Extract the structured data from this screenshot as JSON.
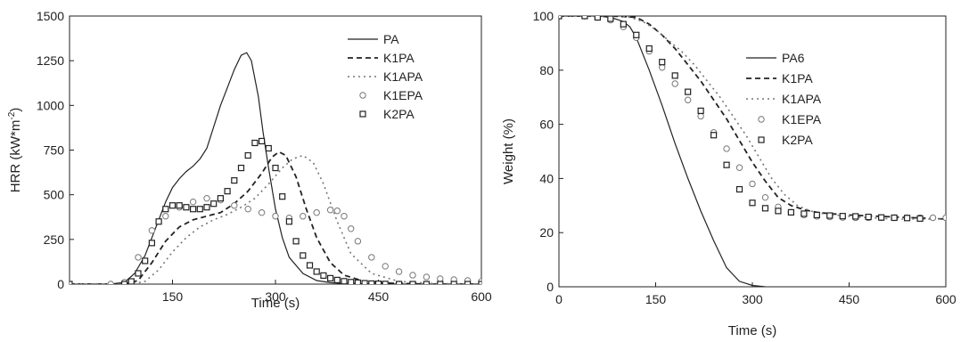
{
  "chart_data": [
    {
      "type": "line",
      "title": "",
      "xlabel": "Time (s)",
      "ylabel": "HRR (kW*m",
      "ylabel_sup": "-2",
      "ylabel_end": ")",
      "xlim": [
        0,
        600
      ],
      "ylim": [
        0,
        1500
      ],
      "xticks": [
        150,
        300,
        450,
        600
      ],
      "xtick_labels": [
        "150",
        "300",
        "450",
        "600"
      ],
      "yticks": [
        0,
        250,
        500,
        750,
        1000,
        1250,
        1500
      ],
      "ytick_labels": [
        "0",
        "250",
        "500",
        "750",
        "1000",
        "1250",
        "1500"
      ],
      "grid": false,
      "legend_position": "top-right",
      "series": [
        {
          "name": "PA",
          "style": "solid",
          "x": [
            0,
            60,
            80,
            95,
            110,
            120,
            130,
            140,
            150,
            160,
            170,
            180,
            190,
            200,
            210,
            220,
            230,
            240,
            250,
            258,
            265,
            275,
            282,
            290,
            300,
            310,
            320,
            340,
            360,
            380,
            400,
            430,
            460,
            500,
            550,
            600
          ],
          "y": [
            0,
            0,
            10,
            60,
            160,
            260,
            360,
            460,
            540,
            590,
            630,
            660,
            700,
            760,
            880,
            1000,
            1100,
            1200,
            1280,
            1295,
            1250,
            1050,
            850,
            650,
            420,
            260,
            150,
            60,
            20,
            8,
            4,
            2,
            1,
            0,
            0,
            0
          ]
        },
        {
          "name": "K1PA",
          "style": "dashed",
          "x": [
            0,
            80,
            100,
            120,
            140,
            160,
            180,
            200,
            220,
            240,
            260,
            280,
            295,
            305,
            315,
            330,
            345,
            360,
            380,
            400,
            430,
            470,
            520,
            600
          ],
          "y": [
            0,
            0,
            20,
            120,
            240,
            320,
            360,
            380,
            400,
            450,
            520,
            620,
            710,
            740,
            720,
            600,
            420,
            260,
            120,
            50,
            15,
            5,
            0,
            0
          ]
        },
        {
          "name": "K1APA",
          "style": "dotted",
          "x": [
            0,
            90,
            110,
            130,
            150,
            170,
            190,
            210,
            230,
            250,
            270,
            290,
            310,
            325,
            340,
            355,
            370,
            390,
            410,
            440,
            480,
            530,
            600
          ],
          "y": [
            0,
            0,
            15,
            80,
            180,
            260,
            320,
            360,
            390,
            430,
            480,
            560,
            650,
            700,
            720,
            680,
            560,
            350,
            170,
            60,
            15,
            3,
            0
          ]
        },
        {
          "name": "K1EPA",
          "style": "circle",
          "x": [
            0,
            60,
            80,
            100,
            120,
            140,
            160,
            180,
            200,
            220,
            240,
            260,
            280,
            300,
            320,
            340,
            360,
            380,
            390,
            400,
            410,
            420,
            440,
            460,
            480,
            500,
            520,
            540,
            560,
            580,
            600
          ],
          "y": [
            0,
            0,
            10,
            150,
            300,
            380,
            430,
            460,
            480,
            470,
            440,
            420,
            400,
            380,
            370,
            380,
            400,
            415,
            410,
            380,
            310,
            240,
            150,
            100,
            70,
            50,
            40,
            30,
            25,
            20,
            15
          ]
        },
        {
          "name": "K2PA",
          "style": "square",
          "x": [
            0,
            80,
            90,
            100,
            110,
            120,
            130,
            140,
            150,
            160,
            170,
            180,
            190,
            200,
            210,
            220,
            230,
            240,
            250,
            260,
            270,
            280,
            290,
            300,
            310,
            320,
            330,
            340,
            350,
            360,
            370,
            380,
            390,
            400,
            410,
            420,
            430,
            440,
            450,
            460,
            480,
            500,
            520,
            540,
            560,
            580,
            600
          ],
          "y": [
            0,
            0,
            15,
            60,
            130,
            230,
            350,
            420,
            440,
            440,
            430,
            420,
            420,
            430,
            450,
            480,
            520,
            580,
            650,
            720,
            790,
            800,
            760,
            650,
            490,
            350,
            240,
            160,
            105,
            70,
            48,
            33,
            23,
            16,
            11,
            8,
            5,
            3,
            2,
            1,
            0,
            0,
            0,
            0,
            0,
            0,
            0
          ]
        }
      ]
    },
    {
      "type": "line",
      "title": "",
      "xlabel": "Time (s)",
      "ylabel": "Weight (%)",
      "xlim": [
        0,
        600
      ],
      "ylim": [
        0,
        100
      ],
      "xticks": [
        0,
        150,
        300,
        450,
        600
      ],
      "xtick_labels": [
        "0",
        "150",
        "300",
        "450",
        "600"
      ],
      "yticks": [
        0,
        20,
        40,
        60,
        80,
        100
      ],
      "ytick_labels": [
        "0",
        "20",
        "40",
        "60",
        "80",
        "100"
      ],
      "grid": false,
      "legend_position": "right",
      "series": [
        {
          "name": "PA6",
          "style": "solid",
          "x": [
            0,
            60,
            80,
            100,
            110,
            120,
            140,
            160,
            180,
            200,
            220,
            240,
            260,
            280,
            300,
            320
          ],
          "y": [
            100,
            100,
            99.5,
            98,
            96,
            92,
            80,
            67,
            53,
            40,
            28,
            17,
            7,
            2,
            0.5,
            0
          ]
        },
        {
          "name": "K1PA",
          "style": "dashed",
          "x": [
            0,
            80,
            100,
            120,
            140,
            160,
            180,
            200,
            220,
            240,
            260,
            280,
            300,
            320,
            340,
            360,
            380,
            400,
            420,
            450,
            500,
            550,
            600
          ],
          "y": [
            100,
            100,
            99.8,
            99.5,
            97,
            93,
            88,
            82,
            76,
            69,
            62,
            54,
            46,
            39,
            33,
            30,
            28.5,
            27.5,
            27,
            26.5,
            26,
            25.5,
            25
          ]
        },
        {
          "name": "K1APA",
          "style": "dotted",
          "x": [
            0,
            90,
            110,
            130,
            150,
            170,
            190,
            210,
            230,
            250,
            270,
            290,
            310,
            330,
            350,
            370,
            390,
            410,
            430,
            450,
            480,
            520,
            600
          ],
          "y": [
            100,
            100,
            99.5,
            98,
            95,
            91,
            87,
            82,
            76,
            70,
            63,
            56,
            48,
            40,
            34,
            30,
            28,
            27,
            26.5,
            26,
            25.5,
            25,
            25
          ]
        },
        {
          "name": "K1EPA",
          "style": "circle",
          "x": [
            0,
            40,
            60,
            80,
            100,
            120,
            140,
            160,
            180,
            200,
            220,
            240,
            260,
            280,
            300,
            320,
            340,
            360,
            380,
            400,
            420,
            440,
            460,
            480,
            500,
            520,
            540,
            560,
            580,
            600
          ],
          "y": [
            100,
            100,
            99.5,
            98.5,
            96,
            92,
            87,
            81,
            75,
            69,
            63,
            57,
            51,
            44,
            38,
            33,
            29.5,
            27.5,
            26.5,
            26,
            25.8,
            25.6,
            25.5,
            25.5,
            25.5,
            25.5,
            25.5,
            25.5,
            25.5,
            25.5
          ]
        },
        {
          "name": "K2PA",
          "style": "square",
          "x": [
            0,
            40,
            60,
            80,
            100,
            120,
            140,
            160,
            180,
            200,
            220,
            240,
            260,
            280,
            300,
            320,
            340,
            360,
            380,
            400,
            420,
            440,
            460,
            480,
            500,
            520,
            540,
            560
          ],
          "y": [
            100,
            100,
            99.5,
            99,
            97,
            93,
            88,
            83,
            78,
            72,
            65,
            56,
            45,
            36,
            31,
            29,
            28,
            27.5,
            27,
            26.5,
            26.3,
            26.1,
            26,
            25.8,
            25.6,
            25.5,
            25.4,
            25.2
          ]
        }
      ]
    }
  ]
}
